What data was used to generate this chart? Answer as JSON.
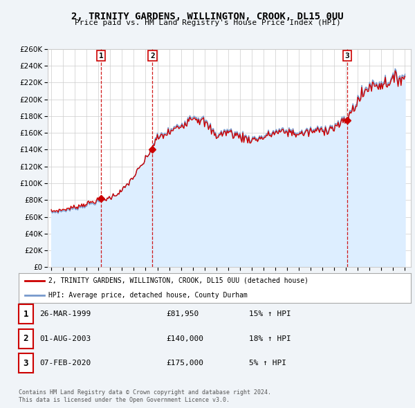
{
  "title": "2, TRINITY GARDENS, WILLINGTON, CROOK, DL15 0UU",
  "subtitle": "Price paid vs. HM Land Registry's House Price Index (HPI)",
  "legend_line1": "2, TRINITY GARDENS, WILLINGTON, CROOK, DL15 0UU (detached house)",
  "legend_line2": "HPI: Average price, detached house, County Durham",
  "footer1": "Contains HM Land Registry data © Crown copyright and database right 2024.",
  "footer2": "This data is licensed under the Open Government Licence v3.0.",
  "transactions": [
    {
      "num": 1,
      "date": "26-MAR-1999",
      "price": 81950,
      "hpi_pct": "15% ↑ HPI",
      "x": 1999.23
    },
    {
      "num": 2,
      "date": "01-AUG-2003",
      "price": 140000,
      "hpi_pct": "18% ↑ HPI",
      "x": 2003.58
    },
    {
      "num": 3,
      "date": "07-FEB-2020",
      "price": 175000,
      "hpi_pct": "5% ↑ HPI",
      "x": 2020.1
    }
  ],
  "ylim": [
    0,
    260000
  ],
  "yticks": [
    0,
    20000,
    40000,
    60000,
    80000,
    100000,
    120000,
    140000,
    160000,
    180000,
    200000,
    220000,
    240000,
    260000
  ],
  "background_color": "#f0f4f8",
  "plot_bg": "#ffffff",
  "grid_color": "#cccccc",
  "red_line_color": "#cc0000",
  "blue_line_color": "#7799cc",
  "fill_color": "#ddeeff",
  "vline_color": "#cc0000",
  "xlim": [
    1994.7,
    2025.5
  ]
}
